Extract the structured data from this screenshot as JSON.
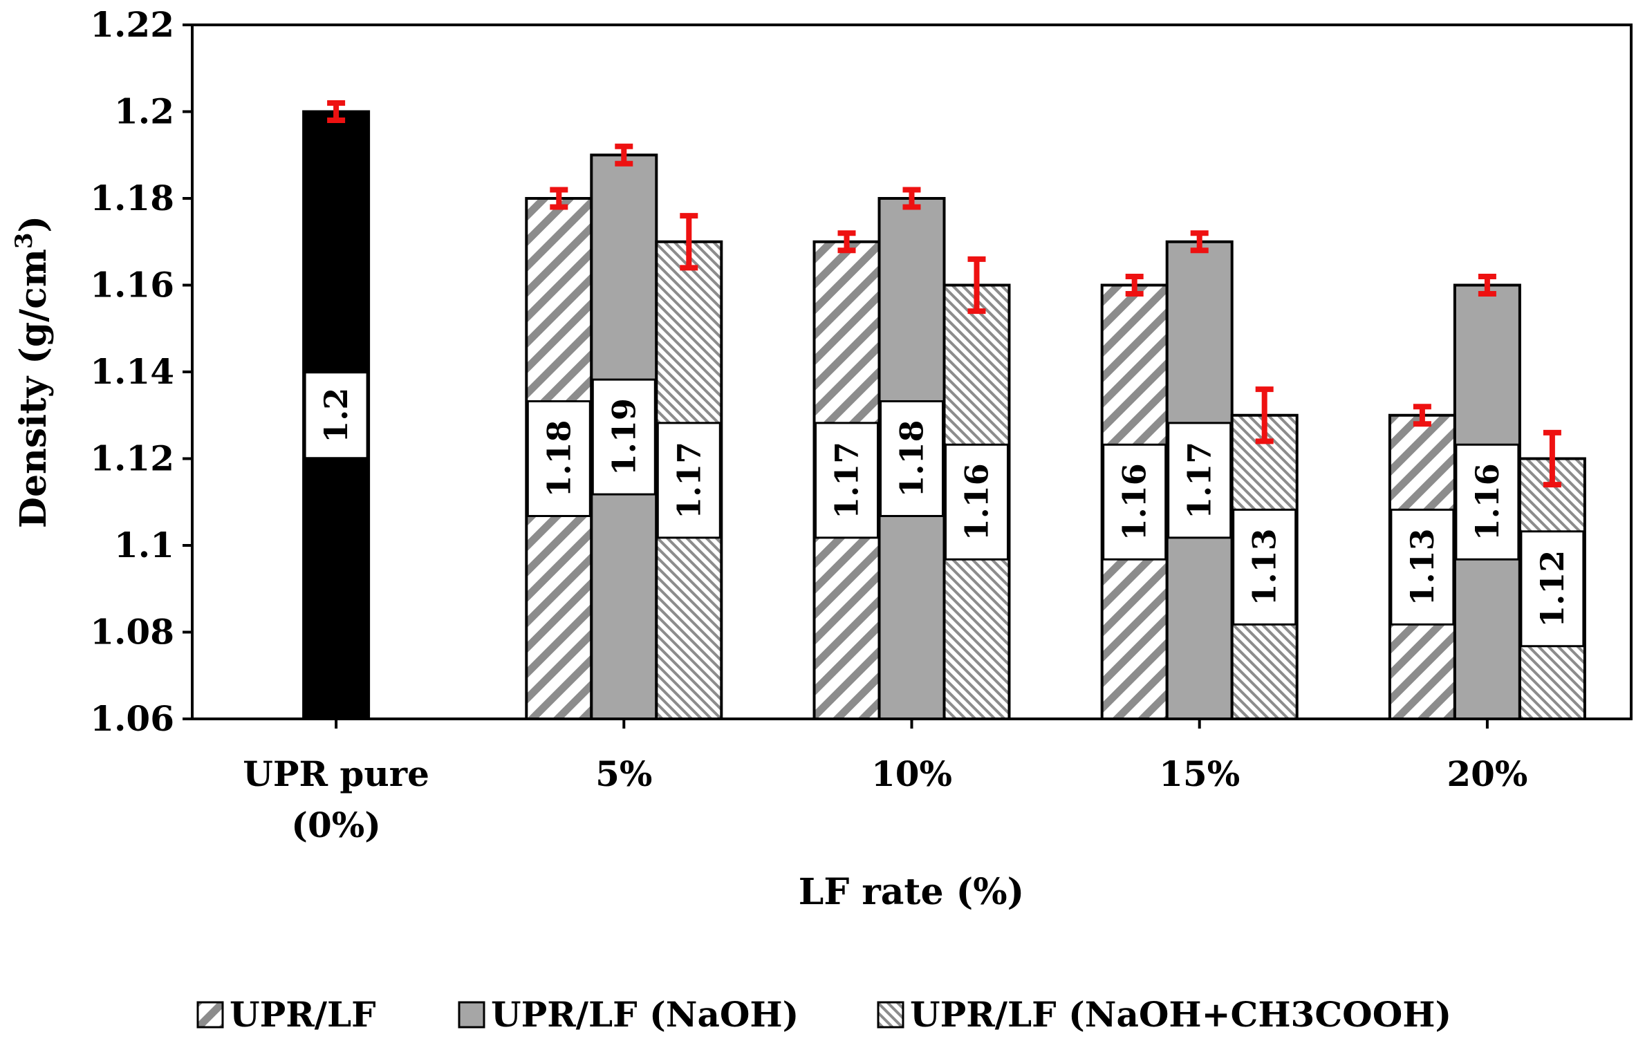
{
  "chart_data": {
    "type": "bar",
    "xlabel": "LF rate  (%)",
    "ylabel": "Density (g/cm",
    "ylabel_superscript": "3",
    "ylabel_close": ")",
    "ylim": [
      1.06,
      1.22
    ],
    "yticks": [
      "1.06",
      "1.08",
      "1.1",
      "1.12",
      "1.14",
      "1.16",
      "1.18",
      "1.2",
      "1.22"
    ],
    "grid": false,
    "legend_position": "bottom",
    "categories": [
      {
        "line1": "UPR pure",
        "line2": "(0%)"
      },
      {
        "line1": "5%",
        "line2": ""
      },
      {
        "line1": "10%",
        "line2": ""
      },
      {
        "line1": "15%",
        "line2": ""
      },
      {
        "line1": "20%",
        "line2": ""
      }
    ],
    "pure": {
      "value": 1.2,
      "label": "1.2",
      "error": 0.002,
      "color": "#000000"
    },
    "series": [
      {
        "name": "UPR/LF",
        "pattern": "diagonal-stripes",
        "values": [
          null,
          1.18,
          1.17,
          1.16,
          1.13
        ],
        "labels": [
          "",
          "1.18",
          "1.17",
          "1.16",
          "1.13"
        ],
        "errors": [
          null,
          0.002,
          0.002,
          0.002,
          0.002
        ]
      },
      {
        "name": "UPR/LF (NaOH)",
        "pattern": "solid-gray",
        "values": [
          null,
          1.19,
          1.18,
          1.17,
          1.16
        ],
        "labels": [
          "",
          "1.19",
          "1.18",
          "1.17",
          "1.16"
        ],
        "errors": [
          null,
          0.002,
          0.002,
          0.002,
          0.002
        ]
      },
      {
        "name": "UPR/LF (NaOH+CH3COOH)",
        "pattern": "fine-hatch",
        "values": [
          null,
          1.17,
          1.16,
          1.13,
          1.12
        ],
        "labels": [
          "",
          "1.17",
          "1.16",
          "1.13",
          "1.12"
        ],
        "errors": [
          null,
          0.006,
          0.006,
          0.006,
          0.006
        ]
      }
    ],
    "error_bar_color": "#ee1111",
    "gray_fill": "#a6a6a6",
    "stripe_color": "#8c8c8c"
  }
}
